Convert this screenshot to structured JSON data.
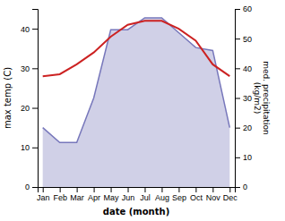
{
  "chart_data": {
    "type": "line",
    "xlabel": "date (month)",
    "ylabel": "max temp (C)",
    "y2label": "med. precipitation\n(kg/m2)",
    "categories": [
      "Jan",
      "Feb",
      "Mar",
      "Apr",
      "May",
      "Jun",
      "Jul",
      "Aug",
      "Sep",
      "Oct",
      "Nov",
      "Dec"
    ],
    "series": [
      {
        "type": "area",
        "axis": "y2",
        "color": "#7777bb",
        "values": [
          20,
          15,
          15,
          30,
          53,
          53,
          57,
          57,
          52,
          47,
          46,
          20
        ]
      },
      {
        "type": "line",
        "color": "#cc2222",
        "values": [
          28,
          28.5,
          31,
          34,
          38,
          41,
          42,
          42,
          40,
          37,
          31,
          28
        ]
      }
    ],
    "ylim": [
      0,
      45
    ],
    "yticks": [
      0,
      10,
      20,
      30,
      40
    ],
    "y2lim": [
      0,
      60
    ],
    "y2ticks": [
      0,
      10,
      20,
      30,
      40,
      50,
      60
    ]
  }
}
